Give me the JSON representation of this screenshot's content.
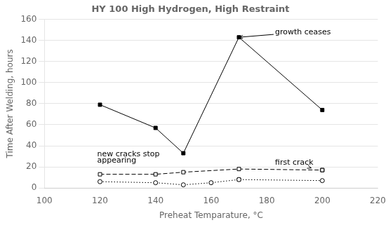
{
  "chart_data": {
    "type": "line",
    "title": "HY 100 High Hydrogen, High Restraint",
    "x_label": "Preheat Temparature, °C",
    "y_label": "Time After Welding, hours",
    "xlim": [
      100,
      220
    ],
    "ylim": [
      0,
      160
    ],
    "xticks": [
      100,
      120,
      140,
      160,
      180,
      200,
      220
    ],
    "yticks": [
      0,
      20,
      40,
      60,
      80,
      100,
      120,
      140,
      160
    ],
    "grid": "y",
    "series": [
      {
        "x": [
          120,
          140,
          150,
          170,
          200
        ],
        "values": [
          79,
          57,
          33,
          143,
          74
        ],
        "color": "#000000",
        "marker": "square",
        "line_style": "solid"
      },
      {
        "x": [
          120,
          140,
          150,
          170,
          200
        ],
        "values": [
          13,
          13,
          15,
          18,
          17
        ],
        "color": "#000000",
        "marker": "open-square",
        "line_style": "dashed"
      },
      {
        "x": [
          120,
          140,
          150,
          160,
          170,
          200
        ],
        "values": [
          6,
          5,
          3,
          5,
          8,
          7
        ],
        "color": "#000000",
        "marker": "open-circle",
        "line_style": "dotted"
      },
      {
        "x": [
          170,
          200
        ],
        "values": [
          8,
          17
        ],
        "color": "#000000",
        "marker": "square",
        "line_style": "none"
      }
    ],
    "annotations": [
      {
        "text": "growth ceases",
        "x": 183,
        "y": 148,
        "arrow_x": 170,
        "arrow_y": 143
      },
      {
        "text": "new cracks stop",
        "x": 119,
        "y": 28
      },
      {
        "text": "appearing",
        "x": 119,
        "y": 22
      },
      {
        "text": "first crack",
        "x": 183,
        "y": 24,
        "arrow_x": 196,
        "arrow_y": 19
      }
    ]
  }
}
